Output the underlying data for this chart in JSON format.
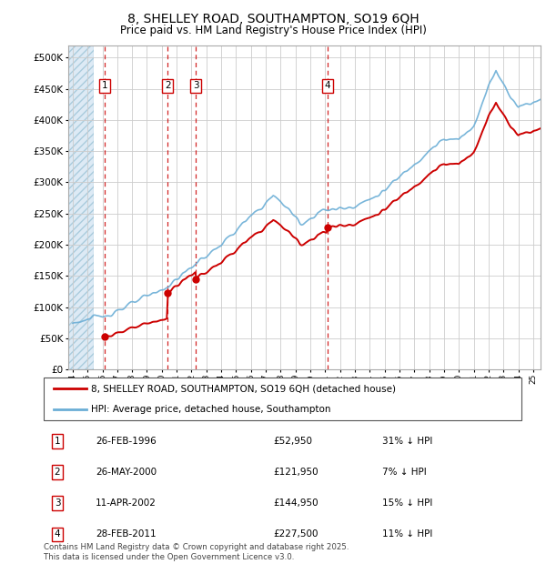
{
  "title": "8, SHELLEY ROAD, SOUTHAMPTON, SO19 6QH",
  "subtitle": "Price paid vs. HM Land Registry's House Price Index (HPI)",
  "sales": [
    {
      "label": "1",
      "date_str": "26-FEB-1996",
      "date_x": 1996.15,
      "price": 52950
    },
    {
      "label": "2",
      "date_str": "26-MAY-2000",
      "date_x": 2000.4,
      "price": 121950
    },
    {
      "label": "3",
      "date_str": "11-APR-2002",
      "date_x": 2002.28,
      "price": 144950
    },
    {
      "label": "4",
      "date_str": "28-FEB-2011",
      "date_x": 2011.15,
      "price": 227500
    }
  ],
  "legend_house": "8, SHELLEY ROAD, SOUTHAMPTON, SO19 6QH (detached house)",
  "legend_hpi": "HPI: Average price, detached house, Southampton",
  "table_rows": [
    {
      "num": "1",
      "date": "26-FEB-1996",
      "price": "£52,950",
      "pct": "31% ↓ HPI"
    },
    {
      "num": "2",
      "date": "26-MAY-2000",
      "price": "£121,950",
      "pct": "7% ↓ HPI"
    },
    {
      "num": "3",
      "date": "11-APR-2002",
      "price": "£144,950",
      "pct": "15% ↓ HPI"
    },
    {
      "num": "4",
      "date": "28-FEB-2011",
      "price": "£227,500",
      "pct": "11% ↓ HPI"
    }
  ],
  "footer": "Contains HM Land Registry data © Crown copyright and database right 2025.\nThis data is licensed under the Open Government Licence v3.0.",
  "hpi_color": "#6baed6",
  "house_color": "#cc0000",
  "sale_label_color": "#cc0000",
  "bg_hatch_color": "#ddeaf5",
  "grid_color": "#cccccc",
  "ylim": [
    0,
    520000
  ],
  "xlim_start": 1993.7,
  "xlim_end": 2025.5
}
